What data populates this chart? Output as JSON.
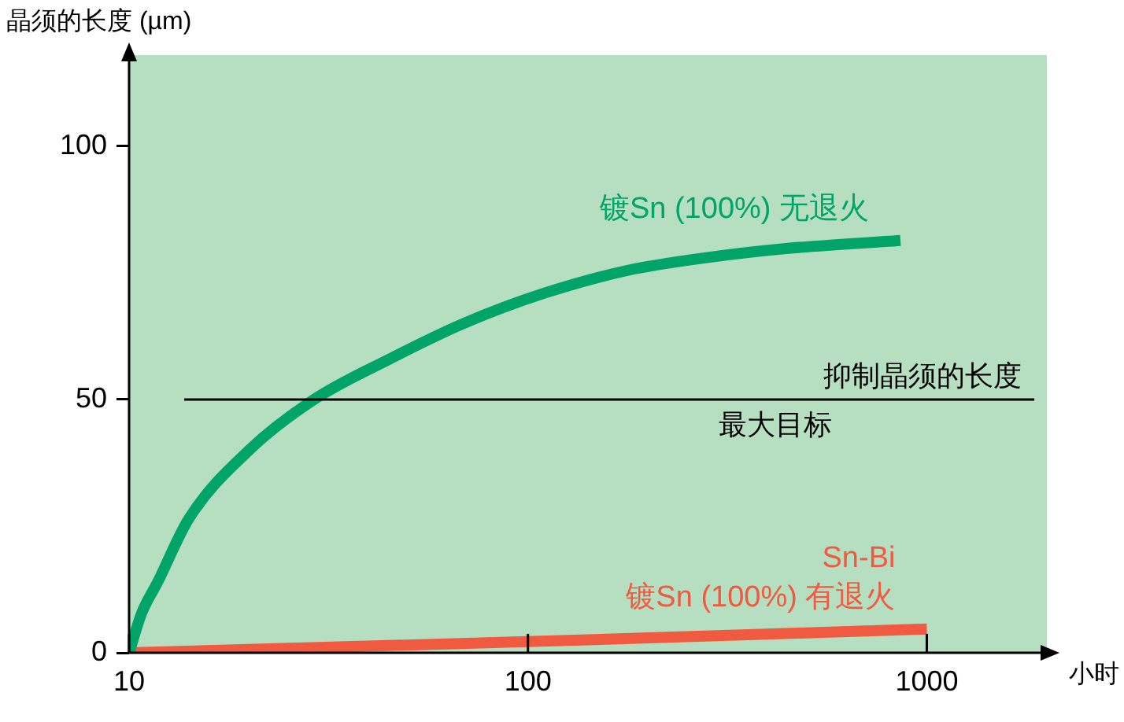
{
  "chart_data": {
    "type": "line",
    "ylabel": "晶须的长度 (µm)",
    "xlabel": "小时",
    "log": "x",
    "xlim": [
      10,
      2000
    ],
    "xticks": [
      10,
      100,
      1000
    ],
    "ylim": [
      0,
      118
    ],
    "yticks": [
      0,
      50,
      100
    ],
    "grid": false,
    "legend": false,
    "marker": "none",
    "line_style": "solid",
    "series": [
      {
        "name": "镀Sn (100%) 无退火",
        "color": "#00a469",
        "x": [
          10,
          10.75,
          11.8,
          14.1,
          20,
          29.1,
          45,
          68.9,
          110,
          178,
          280,
          444,
          859
        ],
        "values": [
          0,
          7.8,
          14,
          26.4,
          40,
          50,
          58,
          65,
          71,
          75.5,
          78,
          79.8,
          81.4
        ]
      },
      {
        "name": "Sn-Bi\n镀Sn (100%) 有退火",
        "color": "#f05a40",
        "x": [
          10,
          100,
          1000
        ],
        "values": [
          0,
          2.2,
          4.7
        ]
      }
    ],
    "ref_lines": [
      {
        "axis": "y",
        "value": 50,
        "label": "抑制晶须的长度",
        "color": "#000000"
      }
    ],
    "annotations": [
      "最大目标"
    ]
  }
}
